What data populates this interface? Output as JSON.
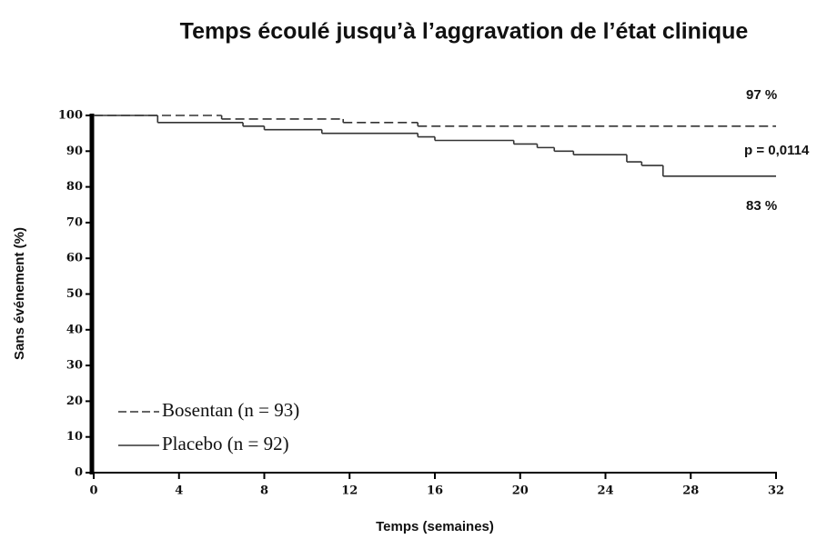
{
  "chart_data": {
    "type": "step",
    "title": "Temps écoulé jusqu’à l’aggravation de l’état clinique",
    "x_label": "Temps (semaines)",
    "y_label": "Sans événement (%)",
    "series": [
      {
        "name": "Bosentan (n = 93)",
        "color": "#333333",
        "dash": true,
        "x": [
          0,
          6,
          11.7,
          15.2
        ],
        "values": [
          100,
          99,
          98,
          97
        ]
      },
      {
        "name": "Placebo (n = 92)",
        "color": "#333333",
        "dash": false,
        "x": [
          0,
          3,
          7,
          8,
          10.7,
          15.2,
          16,
          19.7,
          20.8,
          21.6,
          22.5,
          25,
          25.7,
          26.7
        ],
        "values": [
          100,
          98,
          97,
          96,
          95,
          94,
          93,
          92,
          91,
          90,
          89,
          87,
          86,
          83
        ]
      }
    ],
    "annotations": [
      "97 %",
      "p = 0,0114",
      "83 %"
    ],
    "xlim": [
      0,
      32
    ],
    "xticks": [
      0,
      4,
      8,
      12,
      16,
      20,
      24,
      28,
      32
    ],
    "ylim": [
      0,
      100
    ],
    "yticks": [
      0,
      10,
      20,
      30,
      40,
      50,
      60,
      70,
      80,
      90,
      100
    ],
    "grid": false
  }
}
